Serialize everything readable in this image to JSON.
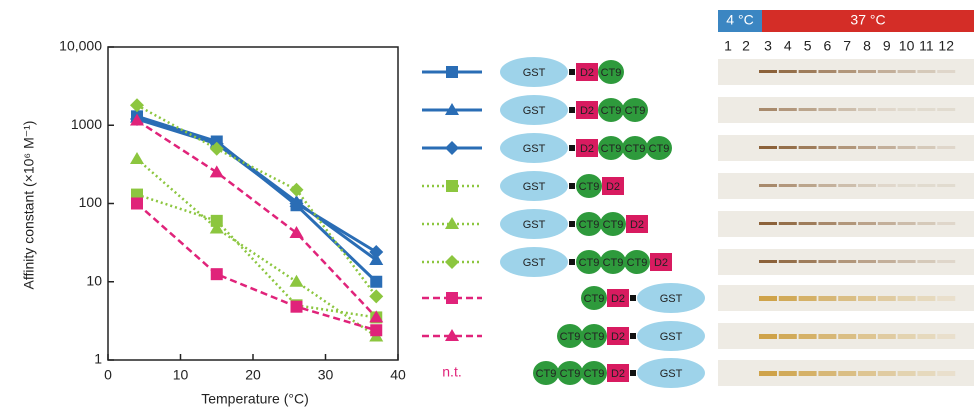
{
  "chart_data": {
    "type": "line",
    "y_label": "Affinity constant (×10⁶ M⁻¹)",
    "x_label": "Temperature (°C)",
    "log_y": true,
    "xlim": [
      0,
      40
    ],
    "xticks": [
      0,
      10,
      20,
      30,
      40
    ],
    "ylim": [
      1,
      10000
    ],
    "yticks": [
      1,
      10,
      100,
      1000,
      {
        "value": 10000,
        "label": "10,000"
      }
    ],
    "x": [
      4,
      15,
      26,
      37
    ],
    "series": [
      {
        "color": "#2a6db5",
        "marker": "square",
        "dash": "solid",
        "values": [
          1300,
          620,
          95,
          10
        ]
      },
      {
        "color": "#2a6db5",
        "marker": "triangle",
        "dash": "solid",
        "values": [
          1250,
          600,
          105,
          19
        ]
      },
      {
        "color": "#2a6db5",
        "marker": "diamond",
        "dash": "solid",
        "values": [
          1200,
          580,
          100,
          24
        ]
      },
      {
        "color": "#8cc63f",
        "marker": "square",
        "dash": "dotted",
        "values": [
          130,
          60,
          5,
          3.5
        ]
      },
      {
        "color": "#8cc63f",
        "marker": "triangle",
        "dash": "dotted",
        "values": [
          370,
          48,
          10,
          2
        ]
      },
      {
        "color": "#8cc63f",
        "marker": "diamond",
        "dash": "dotted",
        "values": [
          1800,
          500,
          150,
          6.5
        ]
      },
      {
        "color": "#e0237a",
        "marker": "square",
        "dash": "dashed",
        "values": [
          100,
          12.5,
          4.8,
          2.4
        ]
      },
      {
        "color": "#e0237a",
        "marker": "triangle",
        "dash": "dashed",
        "values": [
          1150,
          250,
          42,
          3.5
        ]
      }
    ],
    "untested_label": "n.t.",
    "constructs": [
      [
        "GST",
        "D2",
        "CT9"
      ],
      [
        "GST",
        "D2",
        "CT9",
        "CT9"
      ],
      [
        "GST",
        "D2",
        "CT9",
        "CT9",
        "CT9"
      ],
      [
        "GST",
        "CT9",
        "D2"
      ],
      [
        "GST",
        "CT9",
        "CT9",
        "D2"
      ],
      [
        "GST",
        "CT9",
        "CT9",
        "CT9",
        "D2"
      ],
      [
        "CT9",
        "D2",
        "GST"
      ],
      [
        "CT9",
        "CT9",
        "D2",
        "GST"
      ],
      [
        "CT9",
        "CT9",
        "CT9",
        "D2",
        "GST"
      ]
    ],
    "gel": {
      "cold": "4 °C",
      "warm": "37 °C",
      "lanes": [
        "1",
        "2",
        "3",
        "4",
        "5",
        "6",
        "7",
        "8",
        "9",
        "10",
        "11",
        "12"
      ]
    }
  }
}
